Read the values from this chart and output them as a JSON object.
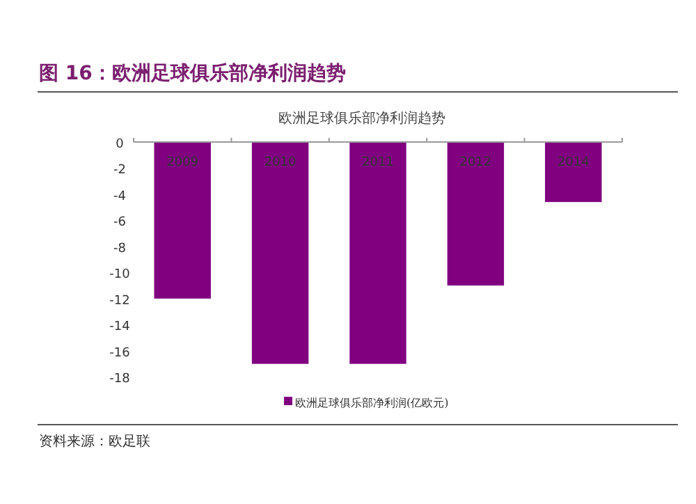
{
  "chart_data": {
    "type": "bar",
    "title": "图 16：欧洲足球俱乐部净利润趋势",
    "subtitle": "欧洲足球俱乐部净利润趋势",
    "categories": [
      "2009",
      "2010",
      "2011",
      "2012",
      "2014"
    ],
    "series": [
      {
        "name": "欧洲足球俱乐部净利润(亿欧元)",
        "color": "#800080",
        "values": [
          -12,
          -17,
          -17,
          -11,
          -4.6
        ]
      }
    ],
    "ylim": [
      -18,
      0
    ],
    "yticks": [
      0,
      -2,
      -4,
      -6,
      -8,
      -10,
      -12,
      -14,
      -16,
      -18
    ],
    "grid": false,
    "legend": "bottom",
    "annotations": [
      "资料来源：欧足联"
    ]
  }
}
